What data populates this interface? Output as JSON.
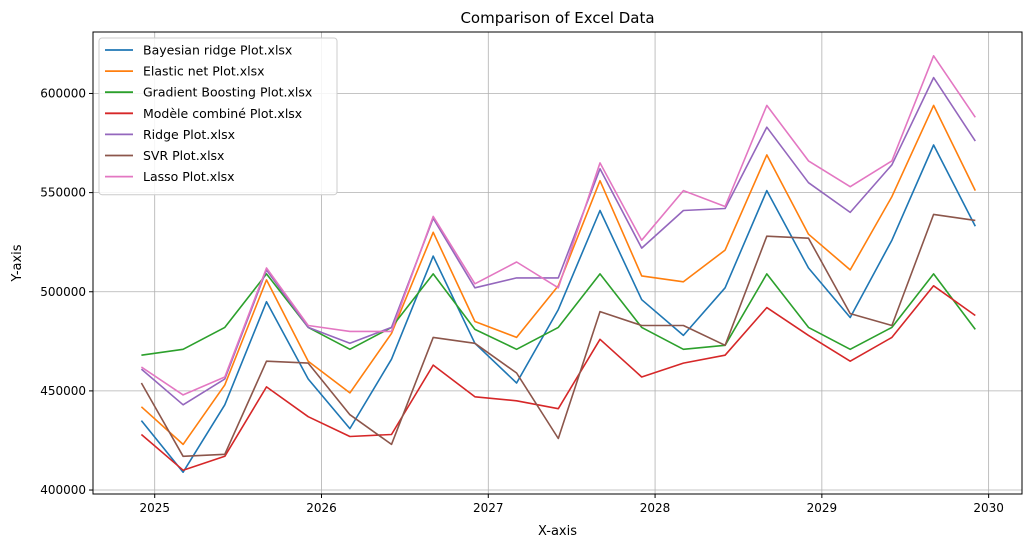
{
  "chart_data": {
    "type": "line",
    "title": "Comparison of Excel Data",
    "xlabel": "X-axis",
    "ylabel": "Y-axis",
    "xlim": [
      2024.63,
      2030.2
    ],
    "ylim": [
      398000,
      631000
    ],
    "xticks": [
      2025,
      2026,
      2027,
      2028,
      2029,
      2030
    ],
    "xtick_labels": [
      "2025",
      "2026",
      "2027",
      "2028",
      "2029",
      "2030"
    ],
    "yticks": [
      400000,
      450000,
      500000,
      550000,
      600000
    ],
    "ytick_labels": [
      "400000",
      "450000",
      "500000",
      "550000",
      "600000"
    ],
    "grid": true,
    "legend_position": "top-left",
    "x": [
      2024.92,
      2025.17,
      2025.42,
      2025.67,
      2025.92,
      2026.17,
      2026.42,
      2026.67,
      2026.92,
      2027.17,
      2027.42,
      2027.67,
      2027.92,
      2028.17,
      2028.42,
      2028.67,
      2028.92,
      2029.17,
      2029.42,
      2029.67,
      2029.92
    ],
    "series": [
      {
        "name": "Bayesian ridge Plot.xlsx",
        "color": "#1f77b4",
        "values": [
          435000,
          409000,
          443000,
          495000,
          456000,
          431000,
          466000,
          518000,
          474000,
          454000,
          491000,
          541000,
          496000,
          478000,
          502000,
          551000,
          512000,
          487000,
          526000,
          574000,
          533000
        ]
      },
      {
        "name": "Elastic net Plot.xlsx",
        "color": "#ff7f0e",
        "values": [
          442000,
          423000,
          453000,
          506000,
          465000,
          449000,
          479000,
          530000,
          485000,
          477000,
          503000,
          556000,
          508000,
          505000,
          521000,
          569000,
          529000,
          511000,
          548000,
          594000,
          551000
        ]
      },
      {
        "name": "Gradient Boosting Plot.xlsx",
        "color": "#2ca02c",
        "values": [
          468000,
          471000,
          482000,
          509000,
          482000,
          471000,
          482000,
          509000,
          481000,
          471000,
          482000,
          509000,
          482000,
          471000,
          473000,
          509000,
          482000,
          471000,
          482000,
          509000,
          481000
        ]
      },
      {
        "name": "Modèle combiné Plot.xlsx",
        "color": "#d62728",
        "values": [
          428000,
          410000,
          417000,
          452000,
          437000,
          427000,
          428000,
          463000,
          447000,
          445000,
          441000,
          476000,
          457000,
          464000,
          468000,
          492000,
          478000,
          465000,
          477000,
          503000,
          488000
        ]
      },
      {
        "name": "Ridge Plot.xlsx",
        "color": "#9467bd",
        "values": [
          461000,
          443000,
          456000,
          511000,
          482000,
          474000,
          482000,
          537000,
          502000,
          507000,
          507000,
          562000,
          522000,
          541000,
          542000,
          583000,
          555000,
          540000,
          564000,
          608000,
          576000
        ]
      },
      {
        "name": "SVR Plot.xlsx",
        "color": "#8c564b",
        "values": [
          454000,
          417000,
          418000,
          465000,
          464000,
          438000,
          423000,
          477000,
          474000,
          459000,
          426000,
          490000,
          483000,
          483000,
          473000,
          528000,
          527000,
          489000,
          483000,
          539000,
          536000
        ]
      },
      {
        "name": "Lasso Plot.xlsx",
        "color": "#e377c2",
        "values": [
          462000,
          448000,
          457000,
          512000,
          483000,
          480000,
          480000,
          538000,
          504000,
          515000,
          502000,
          565000,
          526000,
          551000,
          543000,
          594000,
          566000,
          553000,
          566000,
          619000,
          588000
        ]
      }
    ]
  }
}
